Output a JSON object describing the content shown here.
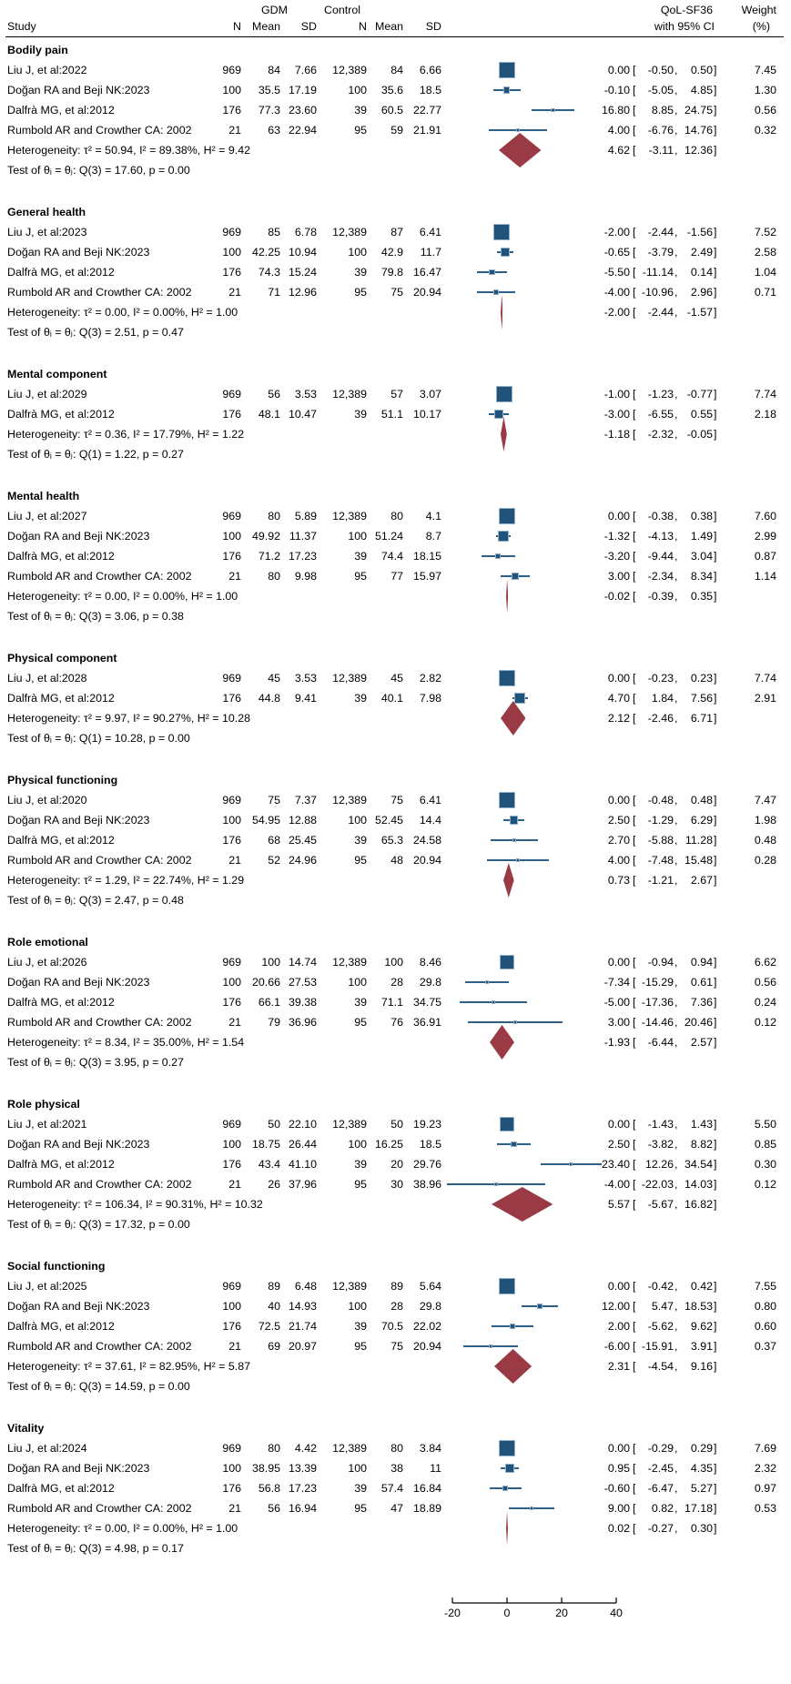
{
  "header": {
    "study": "Study",
    "gdm": "GDM",
    "control": "Control",
    "n": "N",
    "mean": "Mean",
    "sd": "SD",
    "effect_l1": "QoL-SF36",
    "effect_l2": "with 95% CI",
    "weight_l1": "Weight",
    "weight_l2": "(%)"
  },
  "colors": {
    "square": "#20527a",
    "square_border": "#8fafc8",
    "ci_line": "#2b5f86",
    "diamond": "#9a3a44",
    "text": "#000000"
  },
  "chart_data": {
    "type": "forest",
    "effect_measure": "QoL-SF36 with 95% CI",
    "x_ticks": [
      -20,
      0,
      20,
      40
    ],
    "x_axis_range": [
      -20,
      40
    ],
    "groups": [
      {
        "label": "Bodily pain",
        "studies": [
          {
            "study": "Liu J, et al:2022",
            "gdm_n": "969",
            "gdm_mean": "84",
            "gdm_sd": "7.66",
            "ctrl_n": "12,389",
            "ctrl_mean": "84",
            "ctrl_sd": "6.66",
            "est": 0.0,
            "lo": -0.5,
            "hi": 0.5,
            "weight": 7.45
          },
          {
            "study": "Doğan RA and Beji NK:2023",
            "gdm_n": "100",
            "gdm_mean": "35.5",
            "gdm_sd": "17.19",
            "ctrl_n": "100",
            "ctrl_mean": "35.6",
            "ctrl_sd": "18.5",
            "est": -0.1,
            "lo": -5.05,
            "hi": 4.85,
            "weight": 1.3
          },
          {
            "study": "Dalfrà MG, et al:2012",
            "gdm_n": "176",
            "gdm_mean": "77.3",
            "gdm_sd": "23.60",
            "ctrl_n": "39",
            "ctrl_mean": "60.5",
            "ctrl_sd": "22.77",
            "est": 16.8,
            "lo": 8.85,
            "hi": 24.75,
            "weight": 0.56
          },
          {
            "study": "Rumbold AR and Crowther CA: 2002",
            "gdm_n": "21",
            "gdm_mean": "63",
            "gdm_sd": "22.94",
            "ctrl_n": "95",
            "ctrl_mean": "59",
            "ctrl_sd": "21.91",
            "est": 4.0,
            "lo": -6.76,
            "hi": 14.76,
            "weight": 0.32
          }
        ],
        "heterogeneity": {
          "text": "Heterogeneity: τ² = 50.94, I² = 89.38%, H² = 9.42",
          "est": 4.62,
          "lo": -3.11,
          "hi": 12.36
        },
        "test": "Test of θᵢ = θⱼ: Q(3) = 17.60, p = 0.00"
      },
      {
        "label": "General health",
        "studies": [
          {
            "study": "Liu J, et al:2023",
            "gdm_n": "969",
            "gdm_mean": "85",
            "gdm_sd": "6.78",
            "ctrl_n": "12,389",
            "ctrl_mean": "87",
            "ctrl_sd": "6.41",
            "est": -2.0,
            "lo": -2.44,
            "hi": -1.56,
            "weight": 7.52
          },
          {
            "study": "Doğan RA and Beji NK:2023",
            "gdm_n": "100",
            "gdm_mean": "42.25",
            "gdm_sd": "10.94",
            "ctrl_n": "100",
            "ctrl_mean": "42.9",
            "ctrl_sd": "11.7",
            "est": -0.65,
            "lo": -3.79,
            "hi": 2.49,
            "weight": 2.58
          },
          {
            "study": "Dalfrà MG, et al:2012",
            "gdm_n": "176",
            "gdm_mean": "74.3",
            "gdm_sd": "15.24",
            "ctrl_n": "39",
            "ctrl_mean": "79.8",
            "ctrl_sd": "16.47",
            "est": -5.5,
            "lo": -11.14,
            "hi": 0.14,
            "weight": 1.04
          },
          {
            "study": "Rumbold AR and Crowther CA: 2002",
            "gdm_n": "21",
            "gdm_mean": "71",
            "gdm_sd": "12.96",
            "ctrl_n": "95",
            "ctrl_mean": "75",
            "ctrl_sd": "20.94",
            "est": -4.0,
            "lo": -10.96,
            "hi": 2.96,
            "weight": 0.71
          }
        ],
        "heterogeneity": {
          "text": "Heterogeneity: τ² = 0.00, I² = 0.00%, H² = 1.00",
          "est": -2.0,
          "lo": -2.44,
          "hi": -1.57
        },
        "test": "Test of θᵢ = θⱼ: Q(3) = 2.51, p = 0.47"
      },
      {
        "label": "Mental component",
        "studies": [
          {
            "study": "Liu J, et al:2029",
            "gdm_n": "969",
            "gdm_mean": "56",
            "gdm_sd": "3.53",
            "ctrl_n": "12,389",
            "ctrl_mean": "57",
            "ctrl_sd": "3.07",
            "est": -1.0,
            "lo": -1.23,
            "hi": -0.77,
            "weight": 7.74
          },
          {
            "study": "Dalfrà MG, et al:2012",
            "gdm_n": "176",
            "gdm_mean": "48.1",
            "gdm_sd": "10.47",
            "ctrl_n": "39",
            "ctrl_mean": "51.1",
            "ctrl_sd": "10.17",
            "est": -3.0,
            "lo": -6.55,
            "hi": 0.55,
            "weight": 2.18
          }
        ],
        "heterogeneity": {
          "text": "Heterogeneity: τ² = 0.36, I² = 17.79%, H² = 1.22",
          "est": -1.18,
          "lo": -2.32,
          "hi": -0.05
        },
        "test": "Test of θᵢ = θⱼ: Q(1) = 1.22, p = 0.27"
      },
      {
        "label": "Mental health",
        "studies": [
          {
            "study": "Liu J, et al:2027",
            "gdm_n": "969",
            "gdm_mean": "80",
            "gdm_sd": "5.89",
            "ctrl_n": "12,389",
            "ctrl_mean": "80",
            "ctrl_sd": "4.1",
            "est": 0.0,
            "lo": -0.38,
            "hi": 0.38,
            "weight": 7.6
          },
          {
            "study": "Doğan RA and Beji NK:2023",
            "gdm_n": "100",
            "gdm_mean": "49.92",
            "gdm_sd": "11.37",
            "ctrl_n": "100",
            "ctrl_mean": "51.24",
            "ctrl_sd": "8.7",
            "est": -1.32,
            "lo": -4.13,
            "hi": 1.49,
            "weight": 2.99
          },
          {
            "study": "Dalfrà MG, et al:2012",
            "gdm_n": "176",
            "gdm_mean": "71.2",
            "gdm_sd": "17.23",
            "ctrl_n": "39",
            "ctrl_mean": "74.4",
            "ctrl_sd": "18.15",
            "est": -3.2,
            "lo": -9.44,
            "hi": 3.04,
            "weight": 0.87
          },
          {
            "study": "Rumbold AR and Crowther CA: 2002",
            "gdm_n": "21",
            "gdm_mean": "80",
            "gdm_sd": "9.98",
            "ctrl_n": "95",
            "ctrl_mean": "77",
            "ctrl_sd": "15.97",
            "est": 3.0,
            "lo": -2.34,
            "hi": 8.34,
            "weight": 1.14
          }
        ],
        "heterogeneity": {
          "text": "Heterogeneity: τ² = 0.00, I² = 0.00%, H² = 1.00",
          "est": -0.02,
          "lo": -0.39,
          "hi": 0.35
        },
        "test": "Test of θᵢ = θⱼ: Q(3) = 3.06, p = 0.38"
      },
      {
        "label": "Physical component",
        "studies": [
          {
            "study": "Liu J, et al:2028",
            "gdm_n": "969",
            "gdm_mean": "45",
            "gdm_sd": "3.53",
            "ctrl_n": "12,389",
            "ctrl_mean": "45",
            "ctrl_sd": "2.82",
            "est": 0.0,
            "lo": -0.23,
            "hi": 0.23,
            "weight": 7.74
          },
          {
            "study": "Dalfrà MG, et al:2012",
            "gdm_n": "176",
            "gdm_mean": "44.8",
            "gdm_sd": "9.41",
            "ctrl_n": "39",
            "ctrl_mean": "40.1",
            "ctrl_sd": "7.98",
            "est": 4.7,
            "lo": 1.84,
            "hi": 7.56,
            "weight": 2.91
          }
        ],
        "heterogeneity": {
          "text": "Heterogeneity: τ² = 9.97, I² = 90.27%, H² = 10.28",
          "est": 2.12,
          "lo": -2.46,
          "hi": 6.71
        },
        "test": "Test of θᵢ = θⱼ: Q(1) = 10.28, p = 0.00"
      },
      {
        "label": "Physical functioning",
        "studies": [
          {
            "study": "Liu J, et al:2020",
            "gdm_n": "969",
            "gdm_mean": "75",
            "gdm_sd": "7.37",
            "ctrl_n": "12,389",
            "ctrl_mean": "75",
            "ctrl_sd": "6.41",
            "est": 0.0,
            "lo": -0.48,
            "hi": 0.48,
            "weight": 7.47
          },
          {
            "study": "Doğan RA and Beji NK:2023",
            "gdm_n": "100",
            "gdm_mean": "54.95",
            "gdm_sd": "12.88",
            "ctrl_n": "100",
            "ctrl_mean": "52.45",
            "ctrl_sd": "14.4",
            "est": 2.5,
            "lo": -1.29,
            "hi": 6.29,
            "weight": 1.98
          },
          {
            "study": "Dalfrà MG, et al:2012",
            "gdm_n": "176",
            "gdm_mean": "68",
            "gdm_sd": "25.45",
            "ctrl_n": "39",
            "ctrl_mean": "65.3",
            "ctrl_sd": "24.58",
            "est": 2.7,
            "lo": -5.88,
            "hi": 11.28,
            "weight": 0.48
          },
          {
            "study": "Rumbold AR and Crowther CA: 2002",
            "gdm_n": "21",
            "gdm_mean": "52",
            "gdm_sd": "24.96",
            "ctrl_n": "95",
            "ctrl_mean": "48",
            "ctrl_sd": "20.94",
            "est": 4.0,
            "lo": -7.48,
            "hi": 15.48,
            "weight": 0.28
          }
        ],
        "heterogeneity": {
          "text": "Heterogeneity: τ² = 1.29, I² = 22.74%, H² = 1.29",
          "est": 0.73,
          "lo": -1.21,
          "hi": 2.67
        },
        "test": "Test of θᵢ = θⱼ: Q(3) = 2.47, p = 0.48"
      },
      {
        "label": "Role emotional",
        "studies": [
          {
            "study": "Liu J, et al:2026",
            "gdm_n": "969",
            "gdm_mean": "100",
            "gdm_sd": "14.74",
            "ctrl_n": "12,389",
            "ctrl_mean": "100",
            "ctrl_sd": "8.46",
            "est": 0.0,
            "lo": -0.94,
            "hi": 0.94,
            "weight": 6.62
          },
          {
            "study": "Doğan RA and Beji NK:2023",
            "gdm_n": "100",
            "gdm_mean": "20.66",
            "gdm_sd": "27.53",
            "ctrl_n": "100",
            "ctrl_mean": "28",
            "ctrl_sd": "29.8",
            "est": -7.34,
            "lo": -15.29,
            "hi": 0.61,
            "weight": 0.56
          },
          {
            "study": "Dalfrà MG, et al:2012",
            "gdm_n": "176",
            "gdm_mean": "66.1",
            "gdm_sd": "39.38",
            "ctrl_n": "39",
            "ctrl_mean": "71.1",
            "ctrl_sd": "34.75",
            "est": -5.0,
            "lo": -17.36,
            "hi": 7.36,
            "weight": 0.24
          },
          {
            "study": "Rumbold AR and Crowther CA: 2002",
            "gdm_n": "21",
            "gdm_mean": "79",
            "gdm_sd": "36.96",
            "ctrl_n": "95",
            "ctrl_mean": "76",
            "ctrl_sd": "36.91",
            "est": 3.0,
            "lo": -14.46,
            "hi": 20.46,
            "weight": 0.12
          }
        ],
        "heterogeneity": {
          "text": "Heterogeneity: τ² = 8.34, I² = 35.00%, H² = 1.54",
          "est": -1.93,
          "lo": -6.44,
          "hi": 2.57
        },
        "test": "Test of θᵢ = θⱼ: Q(3) = 3.95, p = 0.27"
      },
      {
        "label": "Role physical",
        "studies": [
          {
            "study": "Liu J, et al:2021",
            "gdm_n": "969",
            "gdm_mean": "50",
            "gdm_sd": "22.10",
            "ctrl_n": "12,389",
            "ctrl_mean": "50",
            "ctrl_sd": "19.23",
            "est": 0.0,
            "lo": -1.43,
            "hi": 1.43,
            "weight": 5.5
          },
          {
            "study": "Doğan RA and Beji NK:2023",
            "gdm_n": "100",
            "gdm_mean": "18.75",
            "gdm_sd": "26.44",
            "ctrl_n": "100",
            "ctrl_mean": "16.25",
            "ctrl_sd": "18.5",
            "est": 2.5,
            "lo": -3.82,
            "hi": 8.82,
            "weight": 0.85
          },
          {
            "study": "Dalfrà MG, et al:2012",
            "gdm_n": "176",
            "gdm_mean": "43.4",
            "gdm_sd": "41.10",
            "ctrl_n": "39",
            "ctrl_mean": "20",
            "ctrl_sd": "29.76",
            "est": 23.4,
            "lo": 12.26,
            "hi": 34.54,
            "weight": 0.3
          },
          {
            "study": "Rumbold AR and Crowther CA: 2002",
            "gdm_n": "21",
            "gdm_mean": "26",
            "gdm_sd": "37.96",
            "ctrl_n": "95",
            "ctrl_mean": "30",
            "ctrl_sd": "38.96",
            "est": -4.0,
            "lo": -22.03,
            "hi": 14.03,
            "weight": 0.12
          }
        ],
        "heterogeneity": {
          "text": "Heterogeneity: τ² = 106.34, I² = 90.31%, H² = 10.32",
          "est": 5.57,
          "lo": -5.67,
          "hi": 16.82
        },
        "test": "Test of θᵢ = θⱼ: Q(3) = 17.32, p = 0.00"
      },
      {
        "label": "Social functioning",
        "studies": [
          {
            "study": "Liu J, et al:2025",
            "gdm_n": "969",
            "gdm_mean": "89",
            "gdm_sd": "6.48",
            "ctrl_n": "12,389",
            "ctrl_mean": "89",
            "ctrl_sd": "5.64",
            "est": 0.0,
            "lo": -0.42,
            "hi": 0.42,
            "weight": 7.55
          },
          {
            "study": "Doğan RA and Beji NK:2023",
            "gdm_n": "100",
            "gdm_mean": "40",
            "gdm_sd": "14.93",
            "ctrl_n": "100",
            "ctrl_mean": "28",
            "ctrl_sd": "29.8",
            "est": 12.0,
            "lo": 5.47,
            "hi": 18.53,
            "weight": 0.8
          },
          {
            "study": "Dalfrà MG, et al:2012",
            "gdm_n": "176",
            "gdm_mean": "72.5",
            "gdm_sd": "21.74",
            "ctrl_n": "39",
            "ctrl_mean": "70.5",
            "ctrl_sd": "22.02",
            "est": 2.0,
            "lo": -5.62,
            "hi": 9.62,
            "weight": 0.6
          },
          {
            "study": "Rumbold AR and Crowther CA: 2002",
            "gdm_n": "21",
            "gdm_mean": "69",
            "gdm_sd": "20.97",
            "ctrl_n": "95",
            "ctrl_mean": "75",
            "ctrl_sd": "20.94",
            "est": -6.0,
            "lo": -15.91,
            "hi": 3.91,
            "weight": 0.37
          }
        ],
        "heterogeneity": {
          "text": "Heterogeneity: τ² = 37.61, I² = 82.95%, H² = 5.87",
          "est": 2.31,
          "lo": -4.54,
          "hi": 9.16
        },
        "test": "Test of θᵢ = θⱼ: Q(3) = 14.59, p = 0.00"
      },
      {
        "label": "Vitality",
        "studies": [
          {
            "study": "Liu J, et al:2024",
            "gdm_n": "969",
            "gdm_mean": "80",
            "gdm_sd": "4.42",
            "ctrl_n": "12,389",
            "ctrl_mean": "80",
            "ctrl_sd": "3.84",
            "est": 0.0,
            "lo": -0.29,
            "hi": 0.29,
            "weight": 7.69
          },
          {
            "study": "Doğan RA and Beji NK:2023",
            "gdm_n": "100",
            "gdm_mean": "38.95",
            "gdm_sd": "13.39",
            "ctrl_n": "100",
            "ctrl_mean": "38",
            "ctrl_sd": "11",
            "est": 0.95,
            "lo": -2.45,
            "hi": 4.35,
            "weight": 2.32
          },
          {
            "study": "Dalfrà MG, et al:2012",
            "gdm_n": "176",
            "gdm_mean": "56.8",
            "gdm_sd": "17.23",
            "ctrl_n": "39",
            "ctrl_mean": "57.4",
            "ctrl_sd": "16.84",
            "est": -0.6,
            "lo": -6.47,
            "hi": 5.27,
            "weight": 0.97
          },
          {
            "study": "Rumbold AR and Crowther CA: 2002",
            "gdm_n": "21",
            "gdm_mean": "56",
            "gdm_sd": "16.94",
            "ctrl_n": "95",
            "ctrl_mean": "47",
            "ctrl_sd": "18.89",
            "est": 9.0,
            "lo": 0.82,
            "hi": 17.18,
            "weight": 0.53
          }
        ],
        "heterogeneity": {
          "text": "Heterogeneity: τ² = 0.00, I² = 0.00%, H² = 1.00",
          "est": 0.02,
          "lo": -0.27,
          "hi": 0.3
        },
        "test": "Test of θᵢ = θⱼ: Q(3) = 4.98, p = 0.17"
      }
    ]
  }
}
